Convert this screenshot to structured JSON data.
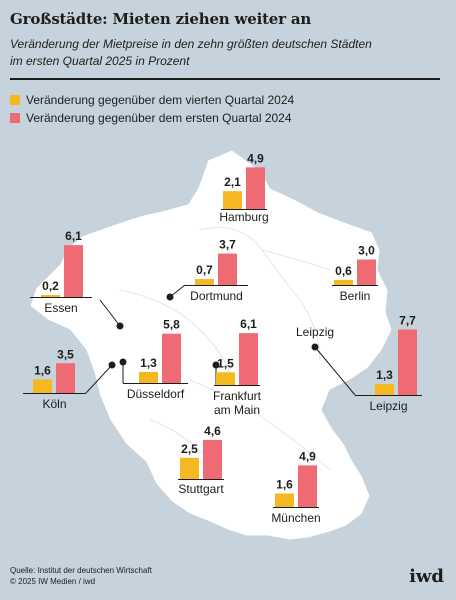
{
  "header": {
    "title": "Großstädte: Mieten ziehen weiter an",
    "subtitle_line1": "Veränderung der Mietpreise in den zehn größten deutschen Städten",
    "subtitle_line2": "im ersten Quartal 2025 in Prozent"
  },
  "colors": {
    "background": "#c6d3dc",
    "map": "#ffffff",
    "q4": "#f4b823",
    "q1": "#ee6b73",
    "text": "#1d1d1b"
  },
  "chart_data": {
    "type": "bar",
    "series": [
      {
        "name": "Veränderung gegenüber dem vierten Quartal 2024",
        "color": "#f4b823"
      },
      {
        "name": "Veränderung gegenüber dem ersten Quartal 2024",
        "color": "#ee6b73"
      }
    ],
    "cities": [
      {
        "name": "Hamburg",
        "values": [
          2.1,
          4.9
        ],
        "labels": [
          "2,1",
          "4,9"
        ]
      },
      {
        "name": "Essen",
        "values": [
          0.2,
          6.1
        ],
        "labels": [
          "0,2",
          "6,1"
        ]
      },
      {
        "name": "Dortmund",
        "values": [
          0.7,
          3.7
        ],
        "labels": [
          "0,7",
          "3,7"
        ]
      },
      {
        "name": "Berlin",
        "values": [
          0.6,
          3.0
        ],
        "labels": [
          "0,6",
          "3,0"
        ]
      },
      {
        "name": "Köln",
        "values": [
          1.6,
          3.5
        ],
        "labels": [
          "1,6",
          "3,5"
        ]
      },
      {
        "name": "Düsseldorf",
        "values": [
          1.3,
          5.8
        ],
        "labels": [
          "1,3",
          "5,8"
        ]
      },
      {
        "name": "Frankfurt am Main",
        "values": [
          1.5,
          6.1
        ],
        "labels": [
          "1,5",
          "6,1"
        ]
      },
      {
        "name": "Leipzig",
        "values": [
          1.3,
          7.7
        ],
        "labels": [
          "1,3",
          "7,7"
        ]
      },
      {
        "name": "Stuttgart",
        "values": [
          2.5,
          4.6
        ],
        "labels": [
          "2,5",
          "4,6"
        ]
      },
      {
        "name": "München",
        "values": [
          1.6,
          4.9
        ],
        "labels": [
          "1,6",
          "4,9"
        ]
      }
    ],
    "map_labels": {
      "leipzig_marker": "Leipzig"
    }
  },
  "footer": {
    "source_line1": "Quelle: Institut der deutschen Wirtschaft",
    "source_line2": "© 2025 IW Medien / iwd",
    "logo": "iwd"
  }
}
